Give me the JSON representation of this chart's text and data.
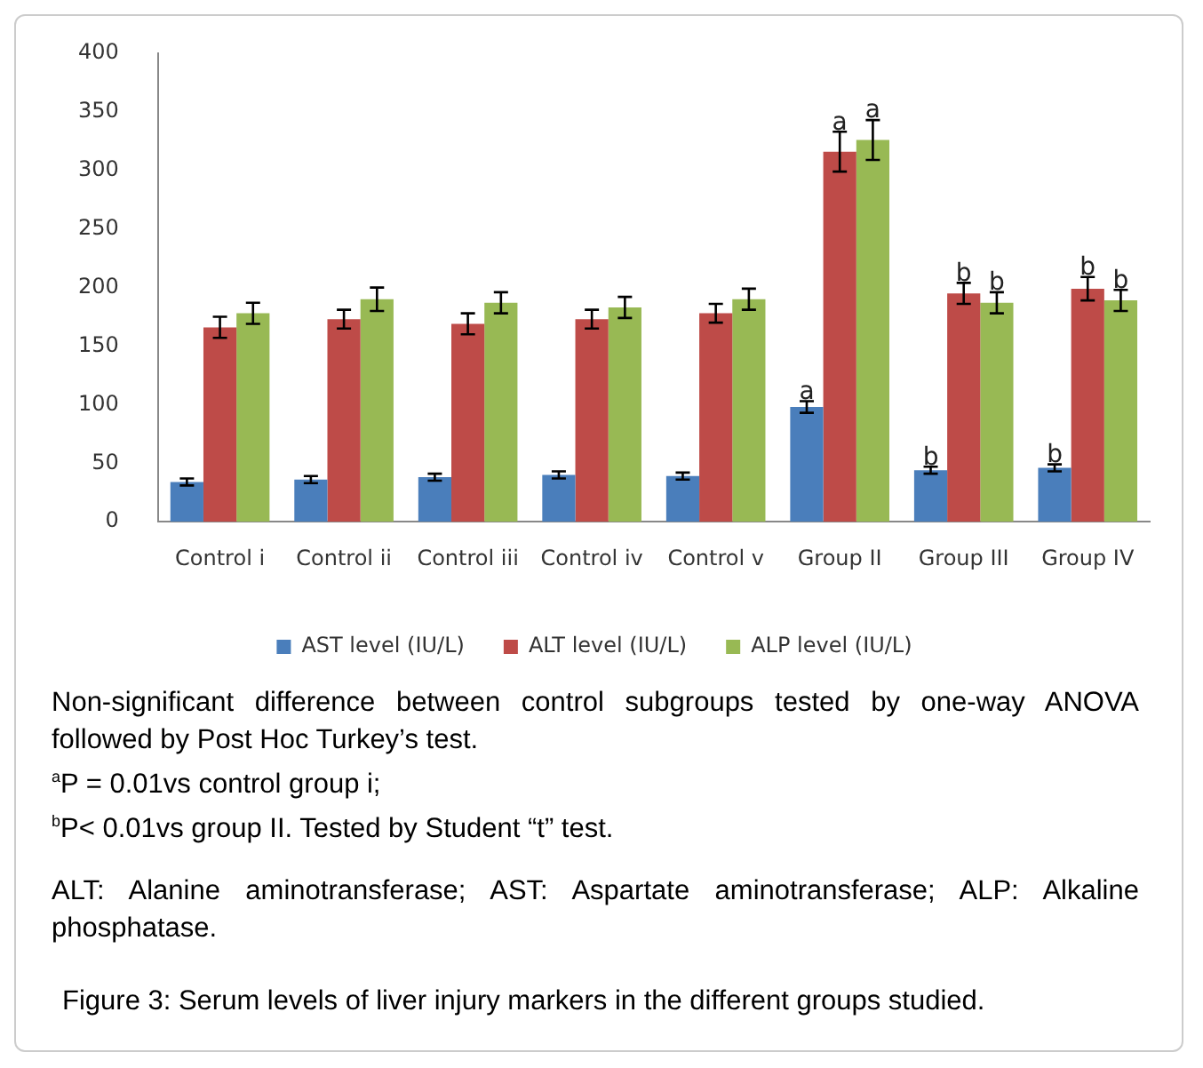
{
  "chart_data": {
    "type": "bar",
    "title": "Figure 3: Serum levels of liver injury markers in the different groups studied.",
    "categories": [
      "Control i",
      "Control ii",
      "Control iii",
      "Control iv",
      "Control v",
      "Group II",
      "Group III",
      "Group IV"
    ],
    "series": [
      {
        "name": "AST level (IU/L)",
        "color": "#4a7ebb",
        "values": [
          34,
          36,
          38,
          40,
          39,
          98,
          44,
          46
        ],
        "errors": [
          3,
          3,
          3,
          3,
          3,
          5,
          3,
          3
        ]
      },
      {
        "name": "ALT level (IU/L)",
        "color": "#be4b48",
        "values": [
          166,
          173,
          169,
          173,
          178,
          316,
          195,
          199
        ],
        "errors": [
          9,
          8,
          9,
          8,
          8,
          17,
          9,
          10
        ]
      },
      {
        "name": "ALP level (IU/L)",
        "color": "#98b954",
        "values": [
          178,
          190,
          187,
          183,
          190,
          326,
          187,
          189
        ],
        "errors": [
          9,
          10,
          9,
          9,
          9,
          17,
          9,
          9
        ]
      }
    ],
    "ylim": [
      0,
      400
    ],
    "yticks": [
      0,
      50,
      100,
      150,
      200,
      250,
      300,
      350,
      400
    ],
    "grid": false,
    "legend": "bottom",
    "annotations": [
      {
        "text": "a",
        "y": 98
      },
      {
        "text": "a",
        "x": "Group II",
        "y": 316
      },
      {
        "text": "a",
        "x": "Group II",
        "y": 326
      },
      {
        "text": "b",
        "y": 44
      },
      {
        "text": "b",
        "x": "Group III",
        "y": 195
      },
      {
        "text": "b",
        "x": "Group III",
        "y": 187
      },
      {
        "text": "b",
        "y": 46
      },
      {
        "text": "b",
        "x": "Group IV",
        "y": 199
      },
      {
        "text": "b",
        "x": "Group IV",
        "y": 189
      },
      "Non-significant difference between control subgroups tested by one-way ANOVA followed by Post Hoc Turkey’s test.",
      "$^{a}$P = 0.01vs control group i;",
      "$^{b}$P< 0.01vs group II.  Tested by Student “t” test.",
      "ALT: Alanine aminotransferase; AST: Aspartate aminotransferase; ALP: Alkaline phosphatase."
    ]
  }
}
